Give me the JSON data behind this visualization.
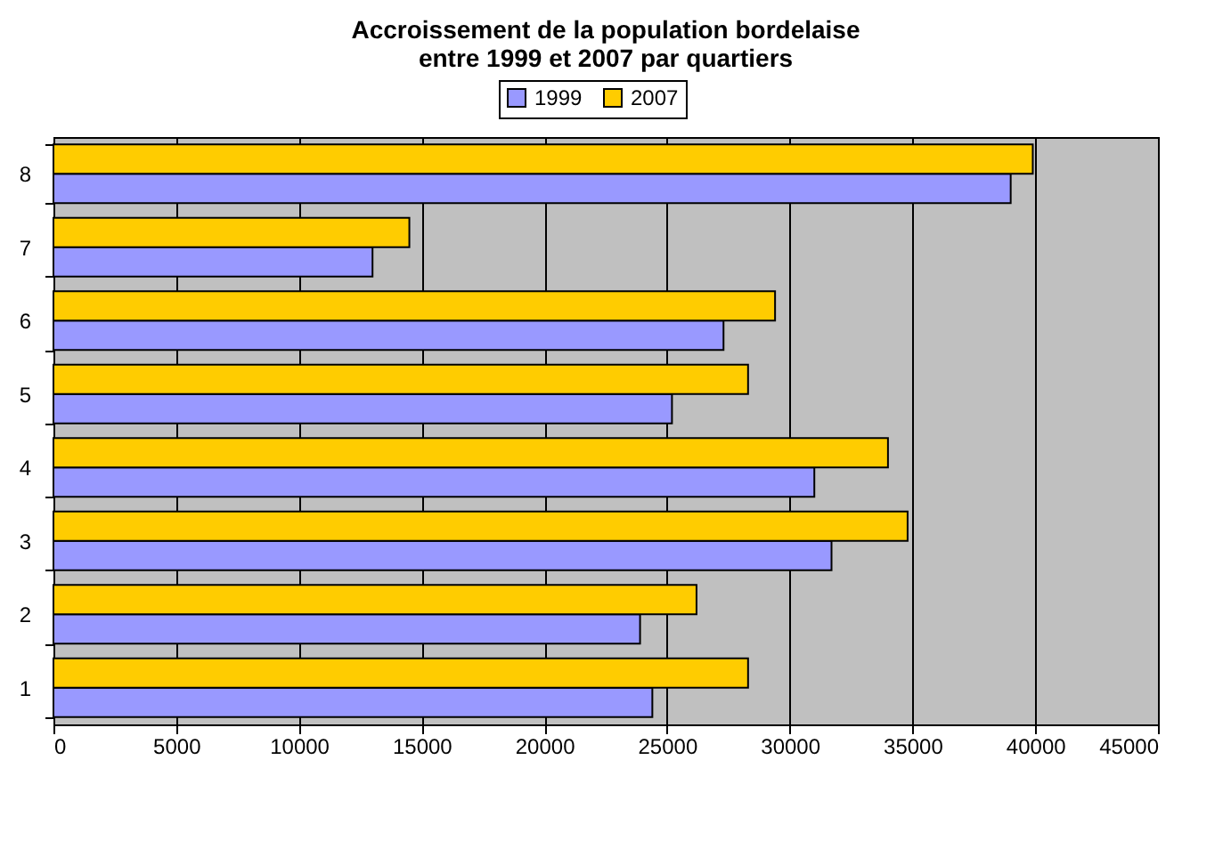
{
  "chart_data": {
    "type": "bar",
    "orientation": "horizontal",
    "title": "Accroissement de la population bordelaise\nentre 1999 et 2007 par quartiers",
    "categories": [
      "8",
      "7",
      "6",
      "5",
      "4",
      "3",
      "2",
      "1"
    ],
    "series": [
      {
        "name": "1999",
        "color": "#9999ff",
        "values": [
          39000,
          13000,
          27300,
          25200,
          31000,
          31700,
          23900,
          24400
        ]
      },
      {
        "name": "2007",
        "color": "#ffcc00",
        "values": [
          39900,
          14500,
          29400,
          28300,
          34000,
          34800,
          26200,
          28300
        ]
      }
    ],
    "xlim": [
      0,
      45000
    ],
    "xticks": [
      0,
      5000,
      10000,
      15000,
      20000,
      25000,
      30000,
      35000,
      40000,
      45000
    ],
    "grid": "x",
    "legend": "top"
  }
}
